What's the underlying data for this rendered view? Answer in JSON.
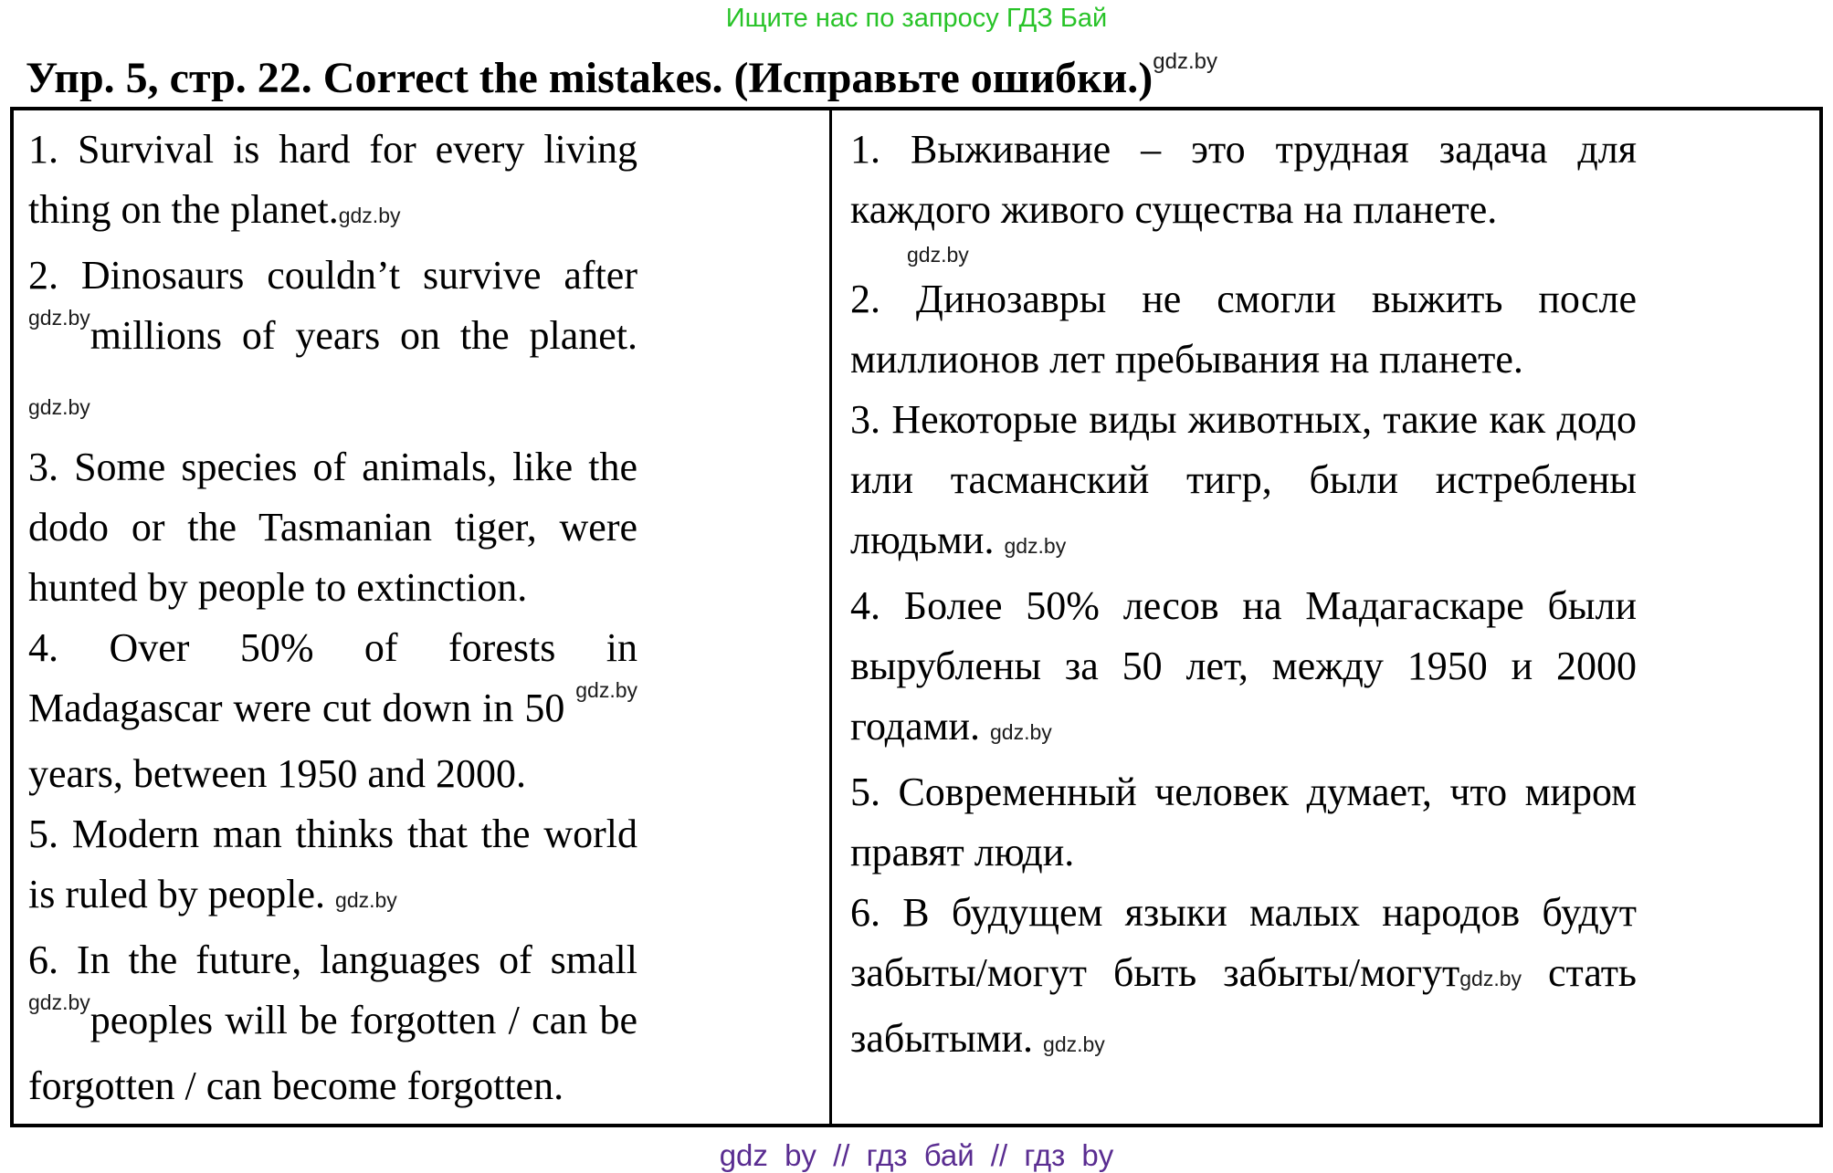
{
  "promo": "Ищите нас по запросу ГДЗ Бай",
  "title": "Упр. 5, стр. 22. Correct the mistakes. (Исправьте ошибки.)",
  "watermark": "gdz.by",
  "columns": {
    "left": [
      {
        "segments": [
          {
            "t": "1. Survival is hard for every living thing on the planet."
          },
          {
            "m": "gdz.by"
          }
        ]
      },
      {
        "segments": [
          {
            "t": "2. Dinosaurs couldn’t survive after "
          },
          {
            "s": "gdz.by"
          },
          {
            "t": "millions of years on the planet. "
          },
          {
            "m": "gdz.by"
          }
        ]
      },
      {
        "segments": [
          {
            "t": "3. Some species of animals, like the dodo or the Tasmanian tiger, were hunted by people to extinction."
          }
        ]
      },
      {
        "segments": [
          {
            "t": "4. Over 50% of forests in Madagascar were cut down in 50 "
          },
          {
            "s": "gdz.by"
          },
          {
            "t": "years, between 1950 and 2000."
          }
        ]
      },
      {
        "segments": [
          {
            "t": "5. Modern man thinks that the world is ruled by people. "
          },
          {
            "m": "gdz.by"
          }
        ]
      },
      {
        "segments": [
          {
            "t": "6. In the future, languages of small "
          },
          {
            "s": "gdz.by"
          },
          {
            "t": "peoples will be forgotten / can be forgotten / can become forgotten."
          }
        ]
      }
    ],
    "right": [
      {
        "segments": [
          {
            "t": "1. Выживание – это трудная задача для каждого живого существа на планете."
          },
          {
            "b": "gdz.by"
          }
        ]
      },
      {
        "segments": [
          {
            "t": "2. Динозавры не смогли выжить после миллионов лет пребывания на планете."
          }
        ]
      },
      {
        "segments": [
          {
            "t": "3. Некоторые виды животных, такие как додо или тасманский тигр, были истреблены людьми. "
          },
          {
            "m": "gdz.by"
          }
        ]
      },
      {
        "segments": [
          {
            "t": "4. Более 50% лесов на Мадагаскаре были вырублены за 50 лет, между 1950 и 2000 годами. "
          },
          {
            "m": "gdz.by"
          }
        ]
      },
      {
        "segments": [
          {
            "t": "5. Современный человек думает, что миром правят люди."
          }
        ]
      },
      {
        "segments": [
          {
            "t": "6. В будущем языки малых народов будут забыты/могут быть забыты/могут"
          },
          {
            "m": "gdz.by"
          },
          {
            "t": " стать забытыми. "
          },
          {
            "m": "gdz.by"
          }
        ]
      }
    ]
  },
  "footer": "gdz by // гдз бай // гдз by",
  "colors": {
    "promo_green": "#28c328",
    "footer_purple": "#5a2d91",
    "text_black": "#000000"
  }
}
